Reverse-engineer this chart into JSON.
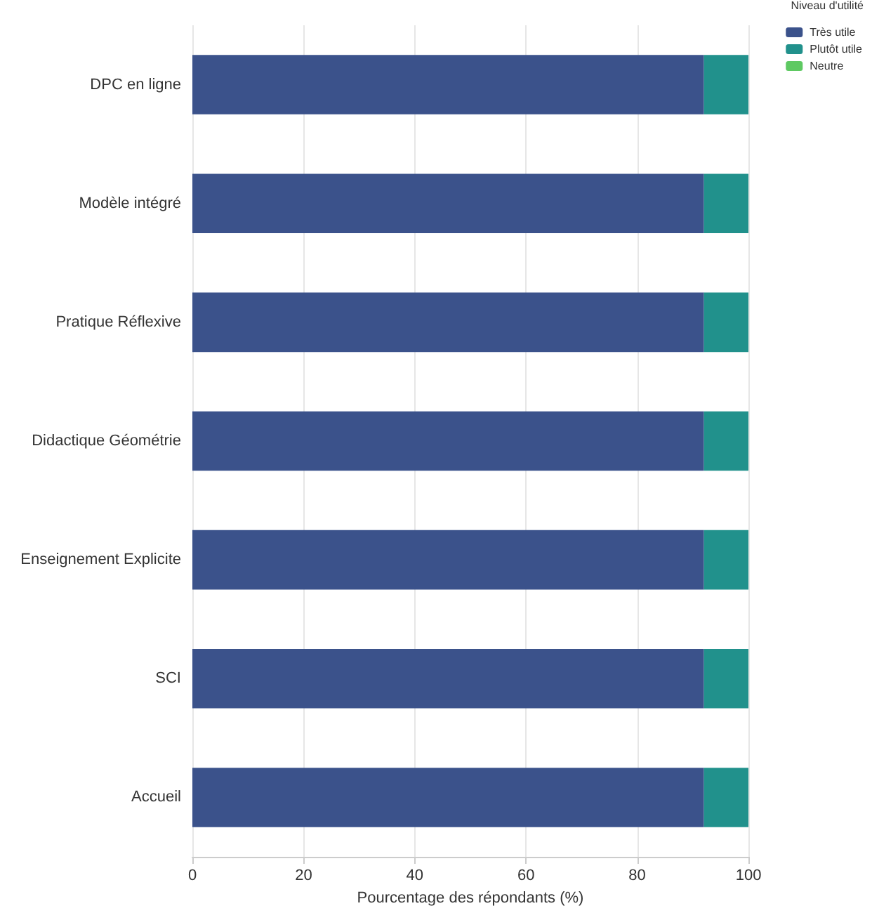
{
  "chart_data": {
    "type": "bar",
    "orientation": "horizontal",
    "stacked": true,
    "categories": [
      "DPC en ligne",
      "Modèle intégré",
      "Pratique Réflexive",
      "Didactique Géométrie",
      "Enseignement Explicite",
      "SCI",
      "Accueil"
    ],
    "series": [
      {
        "name": "Très utile",
        "color": "#3b528b",
        "values": [
          92,
          92,
          92,
          92,
          92,
          92,
          92
        ]
      },
      {
        "name": "Plutôt utile",
        "color": "#21918c",
        "values": [
          8,
          8,
          8,
          8,
          8,
          8,
          8
        ]
      },
      {
        "name": "Neutre",
        "color": "#5ec962",
        "values": [
          0,
          0,
          0,
          0,
          0,
          0,
          0
        ]
      }
    ],
    "xlabel": "Pourcentage des répondants (%)",
    "legend_title": "Niveau d'utilité",
    "xlim": [
      0,
      100
    ],
    "xticks": [
      0,
      20,
      40,
      60,
      80,
      100
    ],
    "grid": "x",
    "legend": "top right"
  }
}
